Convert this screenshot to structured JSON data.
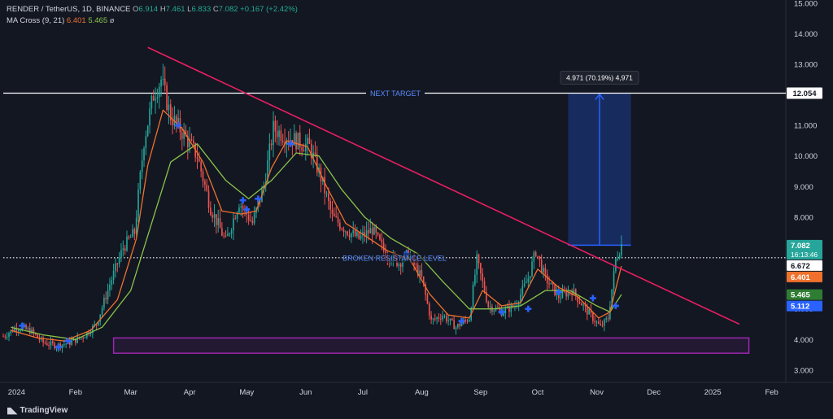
{
  "header": {
    "pair": "RENDER / TetherUS, 1D, BINANCE",
    "o_label": "O",
    "o": "6.914",
    "h_label": "H",
    "h": "7.461",
    "l_label": "L",
    "l": "6.833",
    "c_label": "C",
    "c": "7.082",
    "change": "+0.167 (+2.42%)",
    "ma_label": "MA Cross (9, 21)",
    "ma_fast": "6.401",
    "ma_slow": "5.465",
    "ma_extra": "ø"
  },
  "brand": "TradingView",
  "colors": {
    "background": "#131722",
    "up": "#26a69a",
    "down": "#ef5350",
    "ma_fast": "#f0712c",
    "ma_slow": "#8bc34a",
    "trendline": "#e91e63",
    "support_zone": "#9c27b0",
    "target_box": "#2962ff",
    "cross_marker": "#2962ff"
  },
  "chart_data": {
    "type": "candlestick",
    "y_axis_ticks": [
      "3.000",
      "4.000",
      "5.000",
      "6.000",
      "7.000",
      "8.000",
      "9.000",
      "10.000",
      "11.000",
      "12.000",
      "13.000",
      "14.000",
      "15.000"
    ],
    "ylim": [
      2.65,
      15.1
    ],
    "x_axis_ticks": [
      {
        "label": "2024",
        "date": "2024-01-01"
      },
      {
        "label": "Feb",
        "date": "2024-02-01"
      },
      {
        "label": "Mar",
        "date": "2024-03-01"
      },
      {
        "label": "Apr",
        "date": "2024-04-01"
      },
      {
        "label": "May",
        "date": "2024-05-01"
      },
      {
        "label": "Jun",
        "date": "2024-06-01"
      },
      {
        "label": "Jul",
        "date": "2024-07-01"
      },
      {
        "label": "Aug",
        "date": "2024-08-01"
      },
      {
        "label": "Sep",
        "date": "2024-09-01"
      },
      {
        "label": "Oct",
        "date": "2024-10-01"
      },
      {
        "label": "Nov",
        "date": "2024-11-01"
      },
      {
        "label": "Dec",
        "date": "2024-12-01"
      },
      {
        "label": "2025",
        "date": "2025-01-01"
      },
      {
        "label": "Feb",
        "date": "2025-02-01"
      }
    ],
    "xlim": [
      "2023-12-25",
      "2025-02-08"
    ],
    "price_path": [
      [
        "2023-12-25",
        4.1
      ],
      [
        "2024-01-01",
        4.4
      ],
      [
        "2024-01-08",
        4.3
      ],
      [
        "2024-01-15",
        3.9
      ],
      [
        "2024-01-22",
        3.8
      ],
      [
        "2024-01-29",
        3.9
      ],
      [
        "2024-02-05",
        4.1
      ],
      [
        "2024-02-12",
        4.5
      ],
      [
        "2024-02-19",
        5.8
      ],
      [
        "2024-02-26",
        7.0
      ],
      [
        "2024-03-03",
        7.5
      ],
      [
        "2024-03-08",
        10.5
      ],
      [
        "2024-03-13",
        12.0
      ],
      [
        "2024-03-17",
        12.5
      ],
      [
        "2024-03-22",
        11.3
      ],
      [
        "2024-03-29",
        10.7
      ],
      [
        "2024-04-05",
        10.0
      ],
      [
        "2024-04-12",
        8.3
      ],
      [
        "2024-04-20",
        7.2
      ],
      [
        "2024-04-27",
        8.5
      ],
      [
        "2024-05-04",
        7.8
      ],
      [
        "2024-05-10",
        9.0
      ],
      [
        "2024-05-15",
        10.9
      ],
      [
        "2024-05-20",
        10.7
      ],
      [
        "2024-05-27",
        10.5
      ],
      [
        "2024-06-03",
        10.3
      ],
      [
        "2024-06-09",
        9.3
      ],
      [
        "2024-06-15",
        8.0
      ],
      [
        "2024-06-22",
        7.6
      ],
      [
        "2024-06-29",
        7.3
      ],
      [
        "2024-07-06",
        7.6
      ],
      [
        "2024-07-13",
        6.8
      ],
      [
        "2024-07-20",
        6.5
      ],
      [
        "2024-07-25",
        6.8
      ],
      [
        "2024-08-01",
        6.0
      ],
      [
        "2024-08-06",
        4.6
      ],
      [
        "2024-08-12",
        4.8
      ],
      [
        "2024-08-19",
        4.4
      ],
      [
        "2024-08-26",
        4.7
      ],
      [
        "2024-08-30",
        6.6
      ],
      [
        "2024-09-05",
        5.1
      ],
      [
        "2024-09-12",
        4.9
      ],
      [
        "2024-09-19",
        5.1
      ],
      [
        "2024-09-26",
        6.0
      ],
      [
        "2024-09-30",
        6.9
      ],
      [
        "2024-10-05",
        6.0
      ],
      [
        "2024-10-12",
        5.4
      ],
      [
        "2024-10-19",
        5.6
      ],
      [
        "2024-10-26",
        5.0
      ],
      [
        "2024-11-03",
        4.4
      ],
      [
        "2024-11-07",
        4.7
      ],
      [
        "2024-11-11",
        6.6
      ],
      [
        "2024-11-14",
        7.1
      ]
    ],
    "ma_fast_path": [
      [
        "2023-12-29",
        4.3
      ],
      [
        "2024-01-12",
        4.05
      ],
      [
        "2024-01-26",
        3.95
      ],
      [
        "2024-02-09",
        4.3
      ],
      [
        "2024-02-23",
        5.3
      ],
      [
        "2024-03-04",
        7.3
      ],
      [
        "2024-03-10",
        9.7
      ],
      [
        "2024-03-18",
        11.5
      ],
      [
        "2024-03-28",
        10.9
      ],
      [
        "2024-04-08",
        9.8
      ],
      [
        "2024-04-18",
        8.2
      ],
      [
        "2024-04-28",
        8.1
      ],
      [
        "2024-05-06",
        8.2
      ],
      [
        "2024-05-14",
        9.6
      ],
      [
        "2024-05-22",
        10.5
      ],
      [
        "2024-06-02",
        10.3
      ],
      [
        "2024-06-12",
        9.0
      ],
      [
        "2024-06-22",
        7.8
      ],
      [
        "2024-07-02",
        7.4
      ],
      [
        "2024-07-14",
        6.9
      ],
      [
        "2024-07-26",
        6.6
      ],
      [
        "2024-08-05",
        5.5
      ],
      [
        "2024-08-15",
        4.8
      ],
      [
        "2024-08-26",
        4.7
      ],
      [
        "2024-09-02",
        5.6
      ],
      [
        "2024-09-12",
        5.1
      ],
      [
        "2024-09-22",
        5.2
      ],
      [
        "2024-10-01",
        6.3
      ],
      [
        "2024-10-12",
        5.7
      ],
      [
        "2024-10-22",
        5.4
      ],
      [
        "2024-11-02",
        4.7
      ],
      [
        "2024-11-08",
        4.9
      ],
      [
        "2024-11-14",
        6.4
      ]
    ],
    "ma_slow_path": [
      [
        "2023-12-29",
        4.4
      ],
      [
        "2024-01-15",
        4.15
      ],
      [
        "2024-02-01",
        4.0
      ],
      [
        "2024-02-15",
        4.4
      ],
      [
        "2024-03-01",
        5.6
      ],
      [
        "2024-03-12",
        7.8
      ],
      [
        "2024-03-22",
        9.8
      ],
      [
        "2024-04-05",
        10.4
      ],
      [
        "2024-04-20",
        9.2
      ],
      [
        "2024-05-02",
        8.6
      ],
      [
        "2024-05-14",
        9.2
      ],
      [
        "2024-05-27",
        10.1
      ],
      [
        "2024-06-08",
        10.0
      ],
      [
        "2024-06-20",
        8.9
      ],
      [
        "2024-07-02",
        8.0
      ],
      [
        "2024-07-16",
        7.3
      ],
      [
        "2024-07-30",
        6.8
      ],
      [
        "2024-08-12",
        5.9
      ],
      [
        "2024-08-26",
        5.0
      ],
      [
        "2024-09-08",
        5.0
      ],
      [
        "2024-09-22",
        5.1
      ],
      [
        "2024-10-05",
        5.6
      ],
      [
        "2024-10-18",
        5.6
      ],
      [
        "2024-11-01",
        5.1
      ],
      [
        "2024-11-08",
        4.9
      ],
      [
        "2024-11-14",
        5.47
      ]
    ],
    "cross_markers": [
      [
        "2024-01-04",
        4.45
      ],
      [
        "2024-01-23",
        3.75
      ],
      [
        "2024-01-28",
        3.95
      ],
      [
        "2024-03-26",
        11.0
      ],
      [
        "2024-04-29",
        8.55
      ],
      [
        "2024-05-01",
        8.25
      ],
      [
        "2024-05-07",
        8.6
      ],
      [
        "2024-05-24",
        10.4
      ],
      [
        "2024-07-24",
        6.8
      ],
      [
        "2024-08-22",
        4.6
      ],
      [
        "2024-09-12",
        4.9
      ],
      [
        "2024-09-26",
        5.0
      ],
      [
        "2024-10-12",
        5.55
      ],
      [
        "2024-10-30",
        5.35
      ],
      [
        "2024-11-11",
        5.1
      ]
    ],
    "trendline": {
      "from": [
        "2024-03-10",
        13.55
      ],
      "to": [
        "2025-01-15",
        4.5
      ]
    },
    "next_target": {
      "label": "NEXT TARGET",
      "value": 12.054,
      "value_label": "12.054"
    },
    "broken_resistance": {
      "label": "BROKEN RESISTANCE LEVEL",
      "value": 6.672
    },
    "measure_box": {
      "from_date": "2024-10-17",
      "to_date": "2024-11-19",
      "low": 7.083,
      "high": 12.054,
      "label": "4.971 (70.19%) 4,971"
    },
    "support_zone": {
      "from_date": "2024-02-21",
      "to_date": "2025-01-20",
      "low": 3.55,
      "high": 4.05
    },
    "price_labels": [
      {
        "text": "7.082",
        "sub": "16:13:46",
        "value": 7.082,
        "color": "#26a69a"
      },
      {
        "text": "6.672",
        "value": 6.672,
        "color": "#ffffff",
        "textColor": "#131722"
      },
      {
        "text": "6.401",
        "value": 6.401,
        "color": "#f0712c"
      },
      {
        "text": "5.465",
        "value": 5.465,
        "color": "#2e7d32"
      },
      {
        "text": "5.112",
        "value": 5.112,
        "color": "#2962ff"
      }
    ]
  }
}
